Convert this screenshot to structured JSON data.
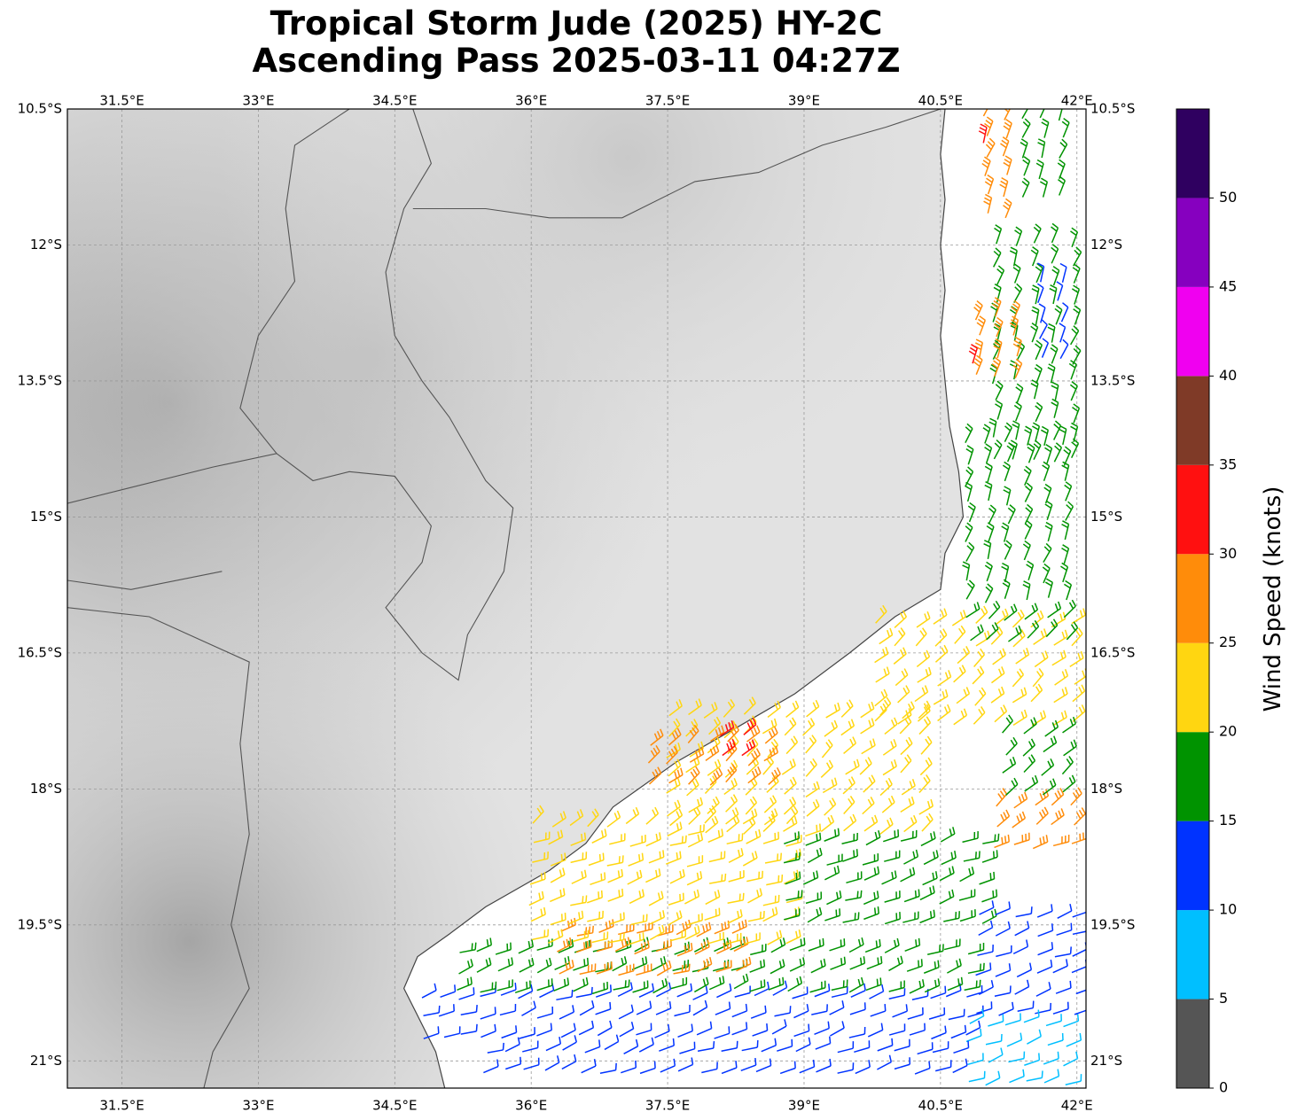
{
  "title": {
    "line1": "Tropical Storm Jude (2025) HY-2C",
    "line2": "Ascending Pass 2025-03-11 04:27Z"
  },
  "map": {
    "extent": {
      "lon_min": 30.9,
      "lon_max": 42.1,
      "lat_min": -21.3,
      "lat_max": -10.5
    },
    "lon_ticks": [
      {
        "value": 31.5,
        "label": "31.5°E"
      },
      {
        "value": 33.0,
        "label": "33°E"
      },
      {
        "value": 34.5,
        "label": "34.5°E"
      },
      {
        "value": 36.0,
        "label": "36°E"
      },
      {
        "value": 37.5,
        "label": "37.5°E"
      },
      {
        "value": 39.0,
        "label": "39°E"
      },
      {
        "value": 40.5,
        "label": "40.5°E"
      },
      {
        "value": 42.0,
        "label": "42°E"
      }
    ],
    "lat_ticks": [
      {
        "value": -10.5,
        "label": "10.5°S"
      },
      {
        "value": -12.0,
        "label": "12°S"
      },
      {
        "value": -13.5,
        "label": "13.5°S"
      },
      {
        "value": -15.0,
        "label": "15°S"
      },
      {
        "value": -16.5,
        "label": "16.5°S"
      },
      {
        "value": -18.0,
        "label": "18°S"
      },
      {
        "value": -19.5,
        "label": "19.5°S"
      },
      {
        "value": -21.0,
        "label": "21°S"
      }
    ],
    "gridlines": true,
    "background": "grayscale topography",
    "coastline": [
      [
        40.55,
        -10.5
      ],
      [
        40.5,
        -11.0
      ],
      [
        40.55,
        -11.5
      ],
      [
        40.5,
        -12.0
      ],
      [
        40.55,
        -12.5
      ],
      [
        40.5,
        -13.0
      ],
      [
        40.55,
        -13.5
      ],
      [
        40.6,
        -14.0
      ],
      [
        40.7,
        -14.5
      ],
      [
        40.75,
        -15.0
      ],
      [
        40.55,
        -15.4
      ],
      [
        40.5,
        -15.8
      ],
      [
        40.0,
        -16.1
      ],
      [
        39.5,
        -16.5
      ],
      [
        38.9,
        -16.95
      ],
      [
        38.3,
        -17.3
      ],
      [
        37.6,
        -17.7
      ],
      [
        36.9,
        -18.2
      ],
      [
        36.6,
        -18.6
      ],
      [
        36.2,
        -18.9
      ],
      [
        35.5,
        -19.3
      ],
      [
        35.1,
        -19.6
      ],
      [
        34.75,
        -19.85
      ],
      [
        34.6,
        -20.2
      ],
      [
        34.75,
        -20.5
      ],
      [
        34.95,
        -20.9
      ],
      [
        35.05,
        -21.3
      ]
    ],
    "borders": [
      [
        [
          30.9,
          -14.85
        ],
        [
          31.5,
          -14.7
        ],
        [
          32.5,
          -14.45
        ],
        [
          33.2,
          -14.3
        ],
        [
          33.6,
          -14.6
        ],
        [
          34.0,
          -14.5
        ],
        [
          34.5,
          -14.55
        ],
        [
          34.9,
          -15.1
        ],
        [
          34.8,
          -15.5
        ],
        [
          34.4,
          -16.0
        ],
        [
          34.8,
          -16.5
        ],
        [
          35.2,
          -16.8
        ],
        [
          35.3,
          -16.3
        ],
        [
          35.7,
          -15.6
        ],
        [
          35.8,
          -14.9
        ],
        [
          35.5,
          -14.6
        ],
        [
          35.1,
          -13.9
        ],
        [
          34.8,
          -13.5
        ],
        [
          34.5,
          -13.0
        ],
        [
          34.4,
          -12.3
        ],
        [
          34.6,
          -11.6
        ],
        [
          34.9,
          -11.1
        ],
        [
          34.7,
          -10.5
        ]
      ],
      [
        [
          34.7,
          -11.6
        ],
        [
          35.5,
          -11.6
        ],
        [
          36.2,
          -11.7
        ],
        [
          37.0,
          -11.7
        ],
        [
          37.8,
          -11.3
        ],
        [
          38.5,
          -11.2
        ],
        [
          39.2,
          -10.9
        ],
        [
          39.9,
          -10.7
        ],
        [
          40.5,
          -10.5
        ]
      ],
      [
        [
          34.0,
          -10.5
        ],
        [
          33.4,
          -10.9
        ],
        [
          33.3,
          -11.6
        ],
        [
          33.4,
          -12.4
        ],
        [
          33.0,
          -13.0
        ],
        [
          32.8,
          -13.8
        ],
        [
          33.2,
          -14.3
        ]
      ],
      [
        [
          30.9,
          -15.7
        ],
        [
          31.6,
          -15.8
        ],
        [
          32.6,
          -15.6
        ]
      ],
      [
        [
          30.9,
          -16.0
        ],
        [
          31.8,
          -16.1
        ],
        [
          32.9,
          -16.6
        ],
        [
          32.8,
          -17.5
        ],
        [
          32.9,
          -18.5
        ],
        [
          32.7,
          -19.5
        ],
        [
          32.9,
          -20.2
        ],
        [
          32.5,
          -20.9
        ],
        [
          32.4,
          -21.3
        ]
      ]
    ]
  },
  "wind_barbs": {
    "units": "knots",
    "bands": [
      {
        "lat0": -20.9,
        "lat1": -20.3,
        "lon0": 34.8,
        "lon1": 41.0,
        "speed": 12
      },
      {
        "lat0": -20.4,
        "lat1": -19.8,
        "lon0": 35.2,
        "lon1": 40.9,
        "speed": 17
      },
      {
        "lat0": -20.2,
        "lat1": -19.6,
        "lon0": 36.3,
        "lon1": 38.3,
        "speed": 27
      },
      {
        "lat0": -19.8,
        "lat1": -18.4,
        "lon0": 36.0,
        "lon1": 39.0,
        "speed": 22
      },
      {
        "lat0": -19.6,
        "lat1": -18.6,
        "lon0": 38.8,
        "lon1": 41.0,
        "speed": 17
      },
      {
        "lat0": -18.6,
        "lat1": -17.2,
        "lon0": 37.5,
        "lon1": 40.5,
        "speed": 22
      },
      {
        "lat0": -18.0,
        "lat1": -17.5,
        "lon0": 37.3,
        "lon1": 38.6,
        "speed": 28
      },
      {
        "lat0": -17.8,
        "lat1": -17.4,
        "lon0": 38.1,
        "lon1": 38.5,
        "speed": 32
      },
      {
        "lat0": -17.4,
        "lat1": -16.2,
        "lon0": 39.8,
        "lon1": 42.0,
        "speed": 21
      },
      {
        "lat0": -16.4,
        "lat1": -14.2,
        "lon0": 40.8,
        "lon1": 42.0,
        "speed": 18
      },
      {
        "lat0": -14.4,
        "lat1": -12.0,
        "lon0": 41.1,
        "lon1": 42.0,
        "speed": 17
      },
      {
        "lat0": -13.4,
        "lat1": -12.4,
        "lon0": 41.6,
        "lon1": 42.0,
        "speed": 12
      },
      {
        "lat0": -13.6,
        "lat1": -12.8,
        "lon0": 40.9,
        "lon1": 41.4,
        "speed": 26
      },
      {
        "lat0": -13.5,
        "lat1": -13.3,
        "lon0": 40.85,
        "lon1": 41.0,
        "speed": 32
      },
      {
        "lat0": -11.8,
        "lat1": -10.6,
        "lon0": 41.0,
        "lon1": 41.4,
        "speed": 27
      },
      {
        "lat0": -11.6,
        "lat1": -10.6,
        "lon0": 41.4,
        "lon1": 42.0,
        "speed": 19
      },
      {
        "lat0": -11.1,
        "lat1": -10.9,
        "lon0": 41.0,
        "lon1": 41.2,
        "speed": 32
      },
      {
        "lat0": -20.6,
        "lat1": -19.4,
        "lon0": 40.9,
        "lon1": 42.0,
        "speed": 13
      },
      {
        "lat0": -21.3,
        "lat1": -20.6,
        "lon0": 40.8,
        "lon1": 42.0,
        "speed": 8
      },
      {
        "lat0": -21.3,
        "lat1": -20.9,
        "lon0": 35.5,
        "lon1": 40.8,
        "speed": 12
      },
      {
        "lat0": -18.8,
        "lat1": -18.2,
        "lon0": 41.1,
        "lon1": 42.0,
        "speed": 26
      },
      {
        "lat0": -18.2,
        "lat1": -17.4,
        "lon0": 41.2,
        "lon1": 42.0,
        "speed": 18
      }
    ]
  },
  "colorbar": {
    "label": "Wind Speed (knots)",
    "ticks": [
      "0",
      "5",
      "10",
      "15",
      "20",
      "25",
      "30",
      "35",
      "40",
      "45",
      "50"
    ],
    "bins": [
      {
        "min": 0,
        "max": 5,
        "color": "#555555"
      },
      {
        "min": 5,
        "max": 10,
        "color": "#00bfff"
      },
      {
        "min": 10,
        "max": 15,
        "color": "#0033ff"
      },
      {
        "min": 15,
        "max": 20,
        "color": "#009300"
      },
      {
        "min": 20,
        "max": 25,
        "color": "#ffd611"
      },
      {
        "min": 25,
        "max": 30,
        "color": "#ff8c0a"
      },
      {
        "min": 30,
        "max": 35,
        "color": "#ff1010"
      },
      {
        "min": 35,
        "max": 40,
        "color": "#7f3a27"
      },
      {
        "min": 40,
        "max": 45,
        "color": "#f000f0"
      },
      {
        "min": 45,
        "max": 50,
        "color": "#8600bf"
      },
      {
        "min": 50,
        "max": 55,
        "color": "#2f0060"
      }
    ]
  }
}
